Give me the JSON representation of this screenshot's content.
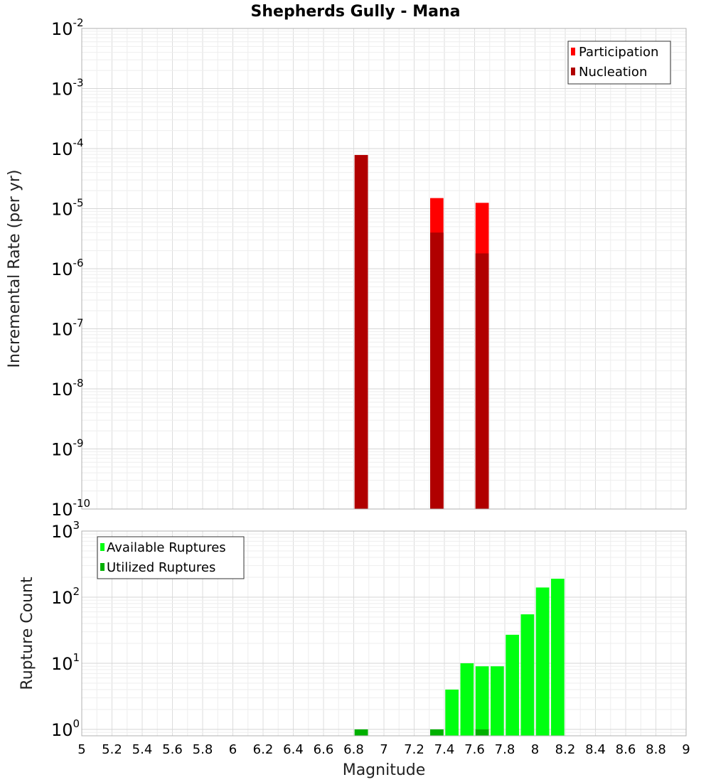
{
  "chart_data": {
    "type": "bar",
    "title": "Shepherds Gully - Mana",
    "xlabel": "Magnitude",
    "x_ticks": [
      "5",
      "5.2",
      "5.4",
      "5.6",
      "5.8",
      "6",
      "6.2",
      "6.4",
      "6.6",
      "6.8",
      "7",
      "7.2",
      "7.4",
      "7.6",
      "7.8",
      "8",
      "8.2",
      "8.4",
      "8.6",
      "8.8",
      "9"
    ],
    "xlim": [
      5,
      9
    ],
    "bin_width": 0.1,
    "panels": [
      {
        "name": "rate",
        "ylabel": "Incremental Rate (per yr)",
        "yscale": "log",
        "ylim": [
          1e-10,
          0.01
        ],
        "y_ticks": [
          {
            "base": "10",
            "exp": "-2",
            "value": 0.01
          },
          {
            "base": "10",
            "exp": "-3",
            "value": 0.001
          },
          {
            "base": "10",
            "exp": "-4",
            "value": 0.0001
          },
          {
            "base": "10",
            "exp": "-5",
            "value": 1e-05
          },
          {
            "base": "10",
            "exp": "-6",
            "value": 1e-06
          },
          {
            "base": "10",
            "exp": "-7",
            "value": 1e-07
          },
          {
            "base": "10",
            "exp": "-8",
            "value": 1e-08
          },
          {
            "base": "10",
            "exp": "-9",
            "value": 1e-09
          },
          {
            "base": "10",
            "exp": "-10",
            "value": 1e-10
          }
        ],
        "legend": {
          "position": "top-right"
        },
        "series": [
          {
            "name": "Participation",
            "color": "#ff0000",
            "x": [
              6.85,
              7.35,
              7.65
            ],
            "values": [
              7.8e-05,
              1.5e-05,
              1.25e-05
            ]
          },
          {
            "name": "Nucleation",
            "color": "#b00000",
            "x": [
              6.85,
              7.35,
              7.65
            ],
            "values": [
              7.8e-05,
              4e-06,
              1.8e-06
            ]
          }
        ]
      },
      {
        "name": "count",
        "ylabel": "Rupture Count",
        "yscale": "log",
        "ylim": [
          0.8,
          1000
        ],
        "y_ticks": [
          {
            "base": "10",
            "exp": "3",
            "value": 1000
          },
          {
            "base": "10",
            "exp": "2",
            "value": 100
          },
          {
            "base": "10",
            "exp": "1",
            "value": 10
          },
          {
            "base": "10",
            "exp": "0",
            "value": 1
          }
        ],
        "legend": {
          "position": "top-left"
        },
        "series": [
          {
            "name": "Available Ruptures",
            "color": "#00ff10",
            "x": [
              6.85,
              7.35,
              7.45,
              7.55,
              7.65,
              7.75,
              7.85,
              7.95,
              8.05,
              8.15
            ],
            "values": [
              1,
              1,
              4,
              10,
              9,
              9,
              27,
              55,
              140,
              190
            ]
          },
          {
            "name": "Utilized Ruptures",
            "color": "#00b000",
            "x": [
              6.85,
              7.35,
              7.65
            ],
            "values": [
              1,
              1,
              1
            ]
          }
        ]
      }
    ]
  }
}
